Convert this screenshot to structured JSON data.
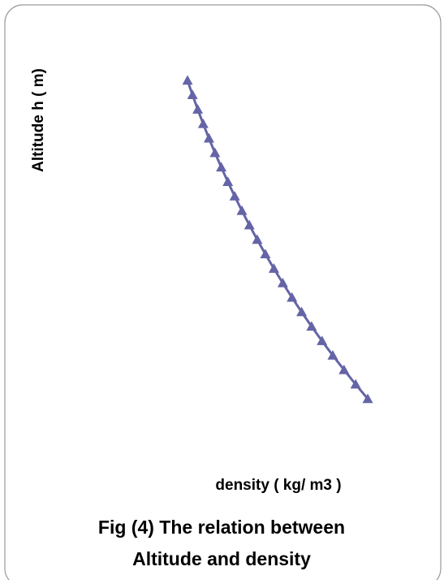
{
  "chart_data": {
    "type": "line",
    "x_label": "density ( kg/ m3 )",
    "y_label": "Altitude h ( m)",
    "caption": [
      "Fig (4) The relation between",
      "Altitude and density"
    ],
    "xlim": [
      0.3,
      1.3
    ],
    "ylim": [
      0,
      12000
    ],
    "xticks": [],
    "yticks": [],
    "grid": false,
    "marker": "triangle",
    "series": [
      {
        "color": "#6464a6",
        "x": [
          1.225,
          1.1673,
          1.1117,
          1.0581,
          1.0066,
          0.9569,
          0.9093,
          0.8634,
          0.8194,
          0.777,
          0.7364,
          0.6975,
          0.6601,
          0.6243,
          0.59,
          0.5572,
          0.5258,
          0.4958,
          0.4671,
          0.4397,
          0.4135,
          0.3886,
          0.3648
        ],
        "values": [
          0,
          500,
          1000,
          1500,
          2000,
          2500,
          3000,
          3500,
          4000,
          4500,
          5000,
          5500,
          6000,
          6500,
          7000,
          7500,
          8000,
          8500,
          9000,
          9500,
          10000,
          10500,
          11000
        ]
      }
    ]
  }
}
